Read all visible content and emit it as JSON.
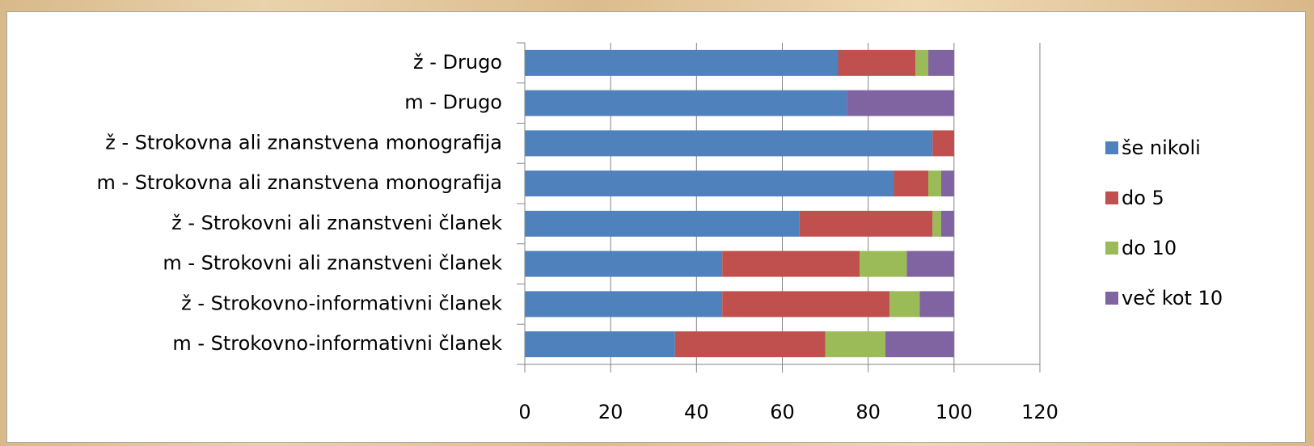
{
  "chart_data": {
    "type": "bar",
    "orientation": "horizontal",
    "stacked": true,
    "categories": [
      "ž - Drugo",
      "m - Drugo",
      "ž - Strokovna ali znanstvena monografija",
      "m - Strokovna ali znanstvena monografija",
      "ž - Strokovni ali znanstveni članek",
      "m - Strokovni ali znanstveni članek",
      "ž - Strokovno-informativni članek",
      "m - Strokovno-informativni članek"
    ],
    "series": [
      {
        "name": "še nikoli",
        "color": "#4f81bd",
        "values": [
          73,
          75,
          95,
          86,
          64,
          46,
          46,
          35
        ]
      },
      {
        "name": "do 5",
        "color": "#c0504d",
        "values": [
          18,
          0,
          5,
          8,
          31,
          32,
          39,
          35
        ]
      },
      {
        "name": "do 10",
        "color": "#9bbb59",
        "values": [
          3,
          0,
          0,
          3,
          2,
          11,
          7,
          14
        ]
      },
      {
        "name": "več kot 10",
        "color": "#8064a2",
        "values": [
          6,
          25,
          0,
          3,
          3,
          11,
          8,
          16
        ]
      }
    ],
    "xlim": [
      0,
      120
    ],
    "xticks": [
      "0",
      "20",
      "40",
      "60",
      "80",
      "100",
      "120"
    ],
    "grid": true,
    "legend_position": "right"
  }
}
